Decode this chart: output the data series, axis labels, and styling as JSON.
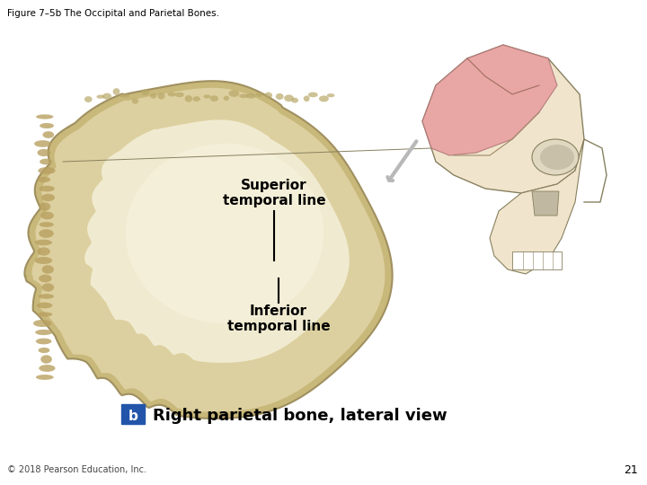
{
  "title": "Figure 7–5b The Occipital and Parietal Bones.",
  "title_fontsize": 7.5,
  "background_color": "#ffffff",
  "label1_text": "Superior\ntemporal line",
  "label2_text": "Inferior\ntemporal line",
  "caption_b_text": "b",
  "caption_text": "Right parietal bone, lateral view",
  "caption_fontsize": 13,
  "page_num": "21",
  "copyright_text": "© 2018 Pearson Education, Inc.",
  "copyright_fontsize": 7,
  "label_fontsize": 11,
  "bone_color_center": "#f0e8c8",
  "bone_color_mid": "#ddd0a0",
  "bone_color_edge": "#c8b87a",
  "bone_color_left_edge": "#b8a060",
  "skull_bone_color": "#f0e5cc",
  "skull_pink_color": "#e8a0a0",
  "skull_line_color": "#888060",
  "arrow_color": "#b0b0b0",
  "label_line_color": "#000000",
  "caption_box_color": "#2255aa"
}
